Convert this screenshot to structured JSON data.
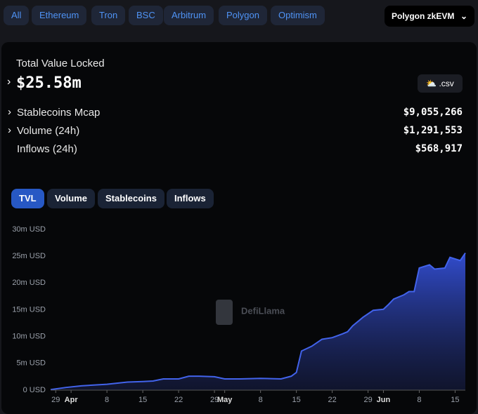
{
  "chains": [
    "All",
    "Ethereum",
    "Tron",
    "BSC",
    "Arbitrum",
    "Polygon",
    "Optimism"
  ],
  "selected_chain": "Polygon zkEVM",
  "tvl": {
    "label": "Total Value Locked",
    "value": "$25.58m"
  },
  "csv_button": ".csv",
  "stats": [
    {
      "label": "Stablecoins Mcap",
      "value": "$9,055,266"
    },
    {
      "label": "Volume (24h)",
      "value": "$1,291,553"
    },
    {
      "label": "Inflows (24h)",
      "value": "$568,917"
    }
  ],
  "tabs": [
    "TVL",
    "Volume",
    "Stablecoins",
    "Inflows"
  ],
  "chart_data": {
    "type": "area",
    "watermark": "DefiLlama",
    "color": "#4263eb",
    "x": [
      "03-28",
      "03-31",
      "04-03",
      "04-08",
      "04-12",
      "04-15",
      "04-17",
      "04-19",
      "04-22",
      "04-24",
      "04-26",
      "04-29",
      "05-01",
      "05-04",
      "05-08",
      "05-12",
      "05-14",
      "05-15",
      "05-16",
      "05-18",
      "05-20",
      "05-22",
      "05-24",
      "05-25",
      "05-26",
      "05-28",
      "05-30",
      "06-01",
      "06-02",
      "06-03",
      "06-05",
      "06-06",
      "06-07",
      "06-08",
      "06-10",
      "06-11",
      "06-13",
      "06-14",
      "06-16",
      "06-17"
    ],
    "values": [
      0.1,
      0.5,
      0.8,
      1.1,
      1.5,
      1.6,
      1.7,
      2.1,
      2.1,
      2.6,
      2.6,
      2.5,
      2.1,
      2.1,
      2.2,
      2.1,
      2.6,
      3.3,
      7.3,
      8.2,
      9.5,
      9.8,
      10.5,
      10.9,
      12.0,
      13.6,
      14.9,
      15.1,
      16.0,
      17.0,
      17.8,
      18.4,
      18.4,
      22.8,
      23.4,
      22.6,
      22.8,
      24.8,
      24.2,
      25.6
    ],
    "ylim": [
      0,
      30
    ],
    "yticks": [
      {
        "value": 0,
        "label": "0 USD"
      },
      {
        "value": 5,
        "label": "5m USD"
      },
      {
        "value": 10,
        "label": "10m USD"
      },
      {
        "value": 15,
        "label": "15m USD"
      },
      {
        "value": 20,
        "label": "20m USD"
      },
      {
        "value": 25,
        "label": "25m USD"
      },
      {
        "value": 30,
        "label": "30m USD"
      }
    ],
    "xlim": [
      "03-28",
      "06-17"
    ],
    "xticks": [
      {
        "value": "03-29",
        "label": "29"
      },
      {
        "value": "04-01",
        "label": "Apr"
      },
      {
        "value": "04-08",
        "label": "8"
      },
      {
        "value": "04-15",
        "label": "15"
      },
      {
        "value": "04-22",
        "label": "22"
      },
      {
        "value": "04-29",
        "label": "29"
      },
      {
        "value": "05-01",
        "label": "May"
      },
      {
        "value": "05-08",
        "label": "8"
      },
      {
        "value": "05-15",
        "label": "15"
      },
      {
        "value": "05-22",
        "label": "22"
      },
      {
        "value": "05-29",
        "label": "29"
      },
      {
        "value": "06-01",
        "label": "Jun"
      },
      {
        "value": "06-08",
        "label": "8"
      },
      {
        "value": "06-15",
        "label": "15"
      }
    ],
    "grid": false
  }
}
